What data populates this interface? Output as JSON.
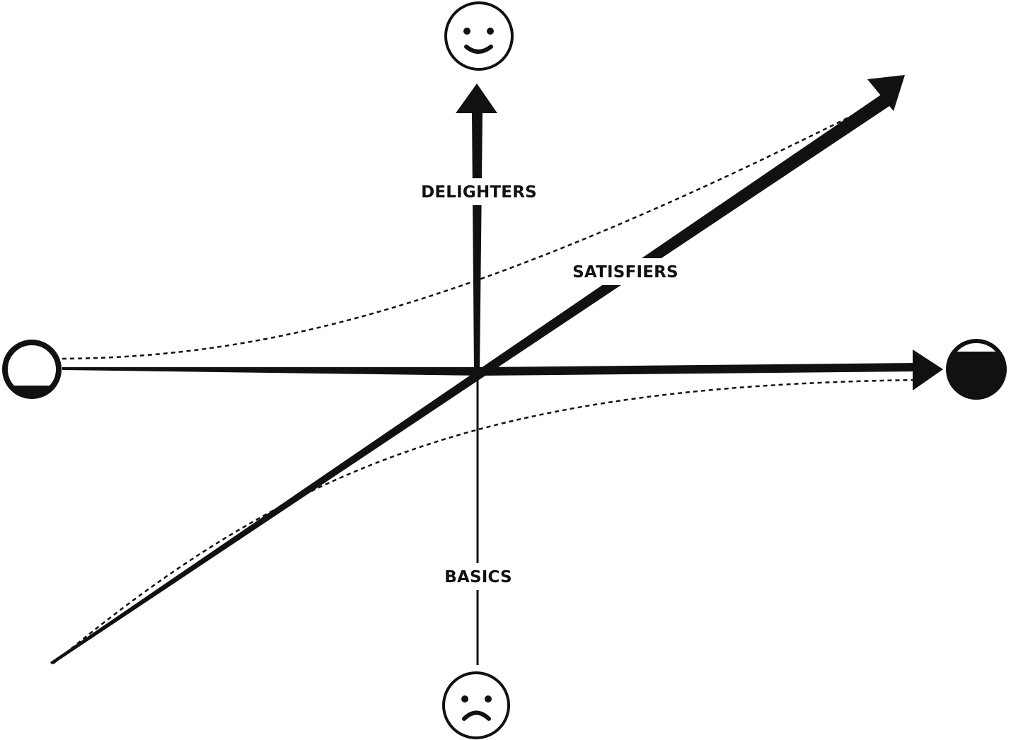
{
  "labels": {
    "delighters": "DELIGHTERS",
    "satisfiers": "SATISFIERS",
    "basics": "BASICS"
  },
  "icons": {
    "top": "smiley-face-icon",
    "bottom": "frowning-face-icon",
    "left": "empty-circle-icon",
    "right": "full-circle-icon"
  },
  "colors": {
    "ink": "#111111",
    "background": "#ffffff"
  }
}
